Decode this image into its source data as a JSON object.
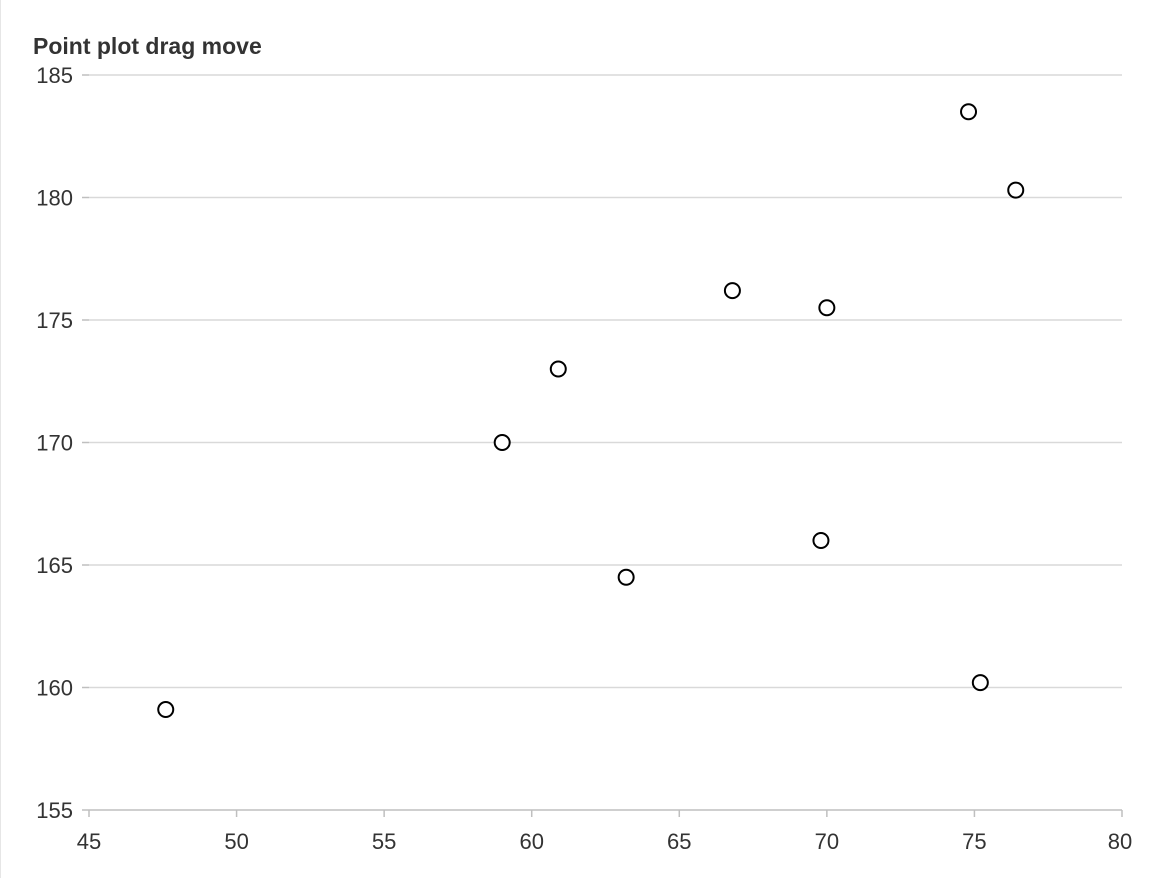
{
  "chart_data": {
    "type": "scatter",
    "title": "Point plot drag move",
    "xlabel": "",
    "ylabel": "",
    "xlim": [
      45,
      80
    ],
    "ylim": [
      155,
      185
    ],
    "x_ticks": [
      45,
      50,
      55,
      60,
      65,
      70,
      75,
      80
    ],
    "y_ticks": [
      155,
      160,
      165,
      170,
      175,
      180,
      185
    ],
    "grid": "horizontal",
    "marker": "hollow-circle",
    "colors": {
      "marker_stroke": "#000000",
      "marker_fill": "#ffffff",
      "grid": "#d9d9d9",
      "axis": "#bfbfbf",
      "text": "#333333"
    },
    "points": [
      {
        "x": 74.8,
        "y": 183.5
      },
      {
        "x": 76.4,
        "y": 180.3
      },
      {
        "x": 66.8,
        "y": 176.2
      },
      {
        "x": 70.0,
        "y": 175.5
      },
      {
        "x": 60.9,
        "y": 173.0
      },
      {
        "x": 59.0,
        "y": 170.0
      },
      {
        "x": 69.8,
        "y": 166.0
      },
      {
        "x": 63.2,
        "y": 164.5
      },
      {
        "x": 75.2,
        "y": 160.2
      },
      {
        "x": 47.6,
        "y": 159.1
      }
    ]
  }
}
